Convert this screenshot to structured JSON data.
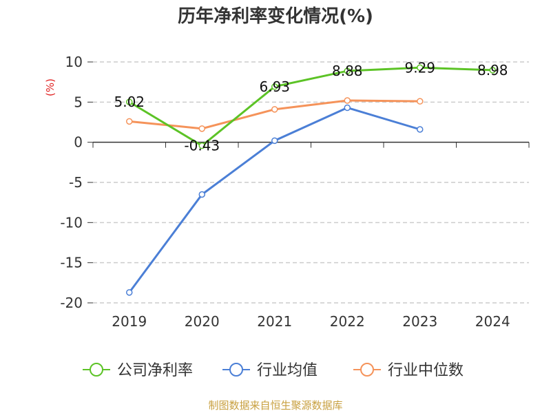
{
  "chart_data": {
    "type": "line",
    "title": "历年净利率变化情况(%)",
    "ylabel": "(%)",
    "xlabel": "",
    "categories": [
      "2019",
      "2020",
      "2021",
      "2022",
      "2023",
      "2024"
    ],
    "ylim": [
      -20,
      10
    ],
    "yticks": [
      10,
      5,
      0,
      -5,
      -10,
      -15,
      -20
    ],
    "grid": true,
    "legend_position": "bottom",
    "series": [
      {
        "name": "公司净利率",
        "color": "#5cc326",
        "values": [
          5.02,
          -0.43,
          6.93,
          8.88,
          9.29,
          8.98
        ],
        "labels": [
          "5.02",
          "-0.43",
          "6.93",
          "8.88",
          "9.29",
          "8.98"
        ]
      },
      {
        "name": "行业均值",
        "color": "#4b7fd6",
        "values": [
          -18.7,
          -6.5,
          0.2,
          4.3,
          1.6,
          null
        ]
      },
      {
        "name": "行业中位数",
        "color": "#f5935a",
        "values": [
          2.6,
          1.7,
          4.1,
          5.2,
          5.1,
          null
        ]
      }
    ]
  },
  "footer": "制图数据来自恒生聚源数据库"
}
